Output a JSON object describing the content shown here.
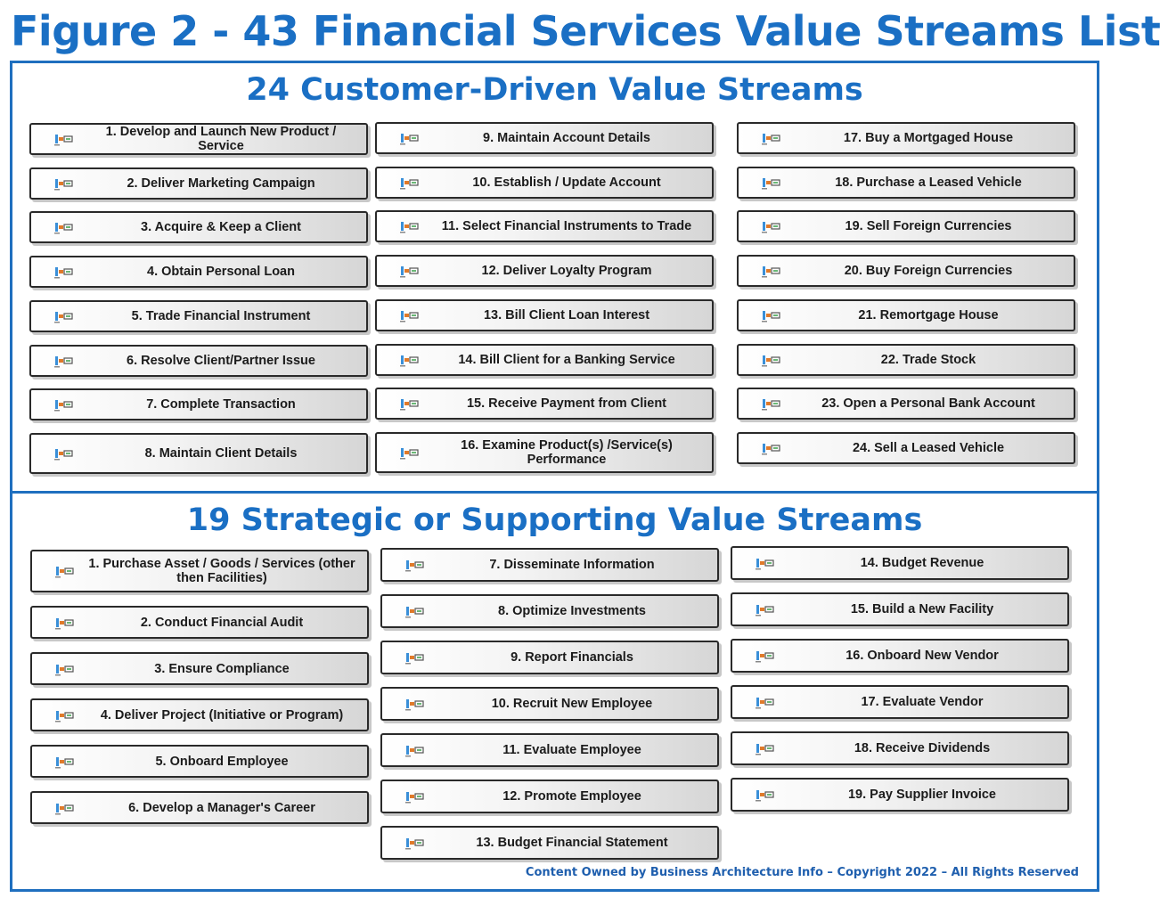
{
  "figure_title": "Figure 2 - 43 Financial Services Value Streams List",
  "customer_section": {
    "title": "24 Customer-Driven Value Streams",
    "columns": [
      [
        "1. Develop and Launch New Product / Service",
        "2. Deliver Marketing Campaign",
        "3. Acquire & Keep a  Client",
        "4. Obtain Personal Loan",
        "5. Trade Financial Instrument",
        "6. Resolve Client/Partner Issue",
        "7. Complete Transaction",
        "8. Maintain Client Details"
      ],
      [
        "9. Maintain Account Details",
        "10. Establish / Update Account",
        "11. Select Financial Instruments to Trade",
        "12. Deliver Loyalty Program",
        "13. Bill Client Loan Interest",
        "14. Bill Client for a Banking Service",
        "15. Receive Payment from Client",
        "16. Examine Product(s) /Service(s) Performance"
      ],
      [
        "17. Buy a Mortgaged House",
        "18. Purchase a Leased Vehicle",
        "19. Sell Foreign Currencies",
        "20. Buy Foreign Currencies",
        "21. Remortgage House",
        "22. Trade Stock",
        "23. Open a Personal Bank Account",
        "24. Sell a Leased Vehicle"
      ]
    ]
  },
  "strategic_section": {
    "title": "19 Strategic or Supporting Value Streams",
    "columns": [
      [
        "1. Purchase Asset / Goods / Services (other then Facilities)",
        "2. Conduct Financial Audit",
        "3. Ensure Compliance",
        "4. Deliver Project (Initiative or Program)",
        "5. Onboard Employee",
        "6. Develop a Manager's Career"
      ],
      [
        "7. Disseminate Information",
        "8. Optimize Investments",
        "9. Report Financials",
        "10. Recruit New Employee",
        "11. Evaluate Employee",
        "12. Promote Employee",
        "13. Budget Financial Statement"
      ],
      [
        "14. Budget Revenue",
        "15. Build a New Facility",
        "16. Onboard New Vendor",
        "17. Evaluate Vendor",
        "18. Receive Dividends",
        "19. Pay Supplier Invoice"
      ]
    ]
  },
  "copyright": "Content Owned by Business Architecture Info  – Copyright 2022  – All Rights Reserved",
  "colors": {
    "title_blue": "#1a6fc4",
    "border_blue": "#1f6fbf"
  },
  "card_icon": "value-stream-icon"
}
